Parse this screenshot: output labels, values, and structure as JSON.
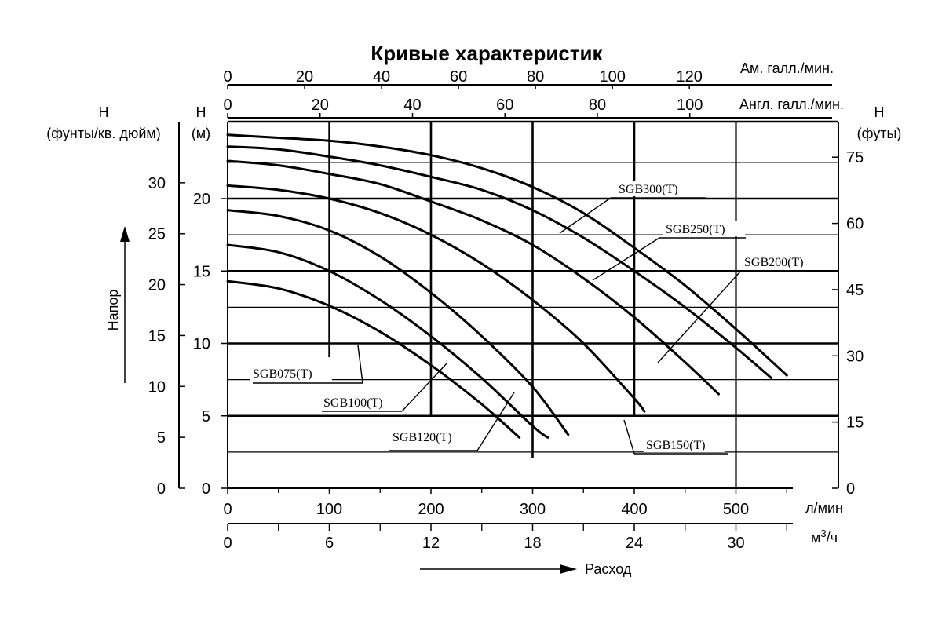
{
  "title": "Кривые характеристик",
  "axes": {
    "top_us_unit": "Ам. галл./мин.",
    "top_uk_unit": "Англ. галл./мин.",
    "bottom_lpm_unit": "л/мин",
    "bottom_m3h_unit": "м³/ч",
    "bottom_m3h_unit_base": "м",
    "bottom_m3h_unit_exp": "3",
    "bottom_m3h_unit_tail": "/ч",
    "left_psi_title": "H",
    "left_psi_unit": "(фунты/кв. дюйм)",
    "left_m_title": "H",
    "left_m_unit": "(м)",
    "right_ft_title": "H",
    "right_ft_unit": "(футы)",
    "ylabel": "Напор",
    "xlabel": "Расход",
    "top_us_ticks": [
      "0",
      "20",
      "40",
      "60",
      "80",
      "100",
      "120"
    ],
    "top_uk_ticks": [
      "0",
      "20",
      "40",
      "60",
      "80",
      "100"
    ],
    "bottom_lpm_ticks": [
      "0",
      "100",
      "200",
      "300",
      "400",
      "500"
    ],
    "bottom_m3h_ticks": [
      "0",
      "6",
      "12",
      "18",
      "24",
      "30"
    ],
    "left_m_ticks": [
      "0",
      "5",
      "10",
      "15",
      "20"
    ],
    "left_psi_ticks": [
      "0",
      "5",
      "10",
      "15",
      "20",
      "25",
      "30"
    ],
    "right_ft_ticks": [
      "0",
      "15",
      "30",
      "45",
      "60",
      "75"
    ]
  },
  "chart_data": {
    "type": "line",
    "title": "Кривые характеристик",
    "xlabel": "Расход",
    "ylabel": "Напор",
    "x_unit": "л/мин",
    "y_unit": "м",
    "xlim": [
      0,
      560
    ],
    "ylim": [
      0,
      25
    ],
    "grid": true,
    "series": [
      {
        "name": "SGB075(T)",
        "x": [
          0,
          50,
          100,
          150,
          200,
          250,
          287
        ],
        "y": [
          14.3,
          13.8,
          12.6,
          10.8,
          8.5,
          5.8,
          3.5
        ]
      },
      {
        "name": "SGB100(T)",
        "x": [
          0,
          50,
          100,
          150,
          200,
          250,
          300,
          315
        ],
        "y": [
          16.8,
          16.3,
          15.0,
          13.0,
          10.5,
          7.6,
          4.3,
          3.5
        ]
      },
      {
        "name": "SGB120(T)",
        "x": [
          0,
          50,
          100,
          150,
          200,
          250,
          300,
          335
        ],
        "y": [
          19.2,
          18.8,
          17.8,
          16.0,
          13.5,
          10.5,
          7.0,
          3.7
        ]
      },
      {
        "name": "SGB150(T)",
        "x": [
          0,
          50,
          100,
          150,
          200,
          250,
          300,
          350,
          400,
          410
        ],
        "y": [
          20.9,
          20.6,
          20.0,
          19.0,
          17.5,
          15.5,
          13.0,
          10.0,
          6.2,
          5.3
        ]
      },
      {
        "name": "SGB200(T)",
        "x": [
          0,
          50,
          100,
          150,
          200,
          250,
          300,
          350,
          400,
          450,
          483
        ],
        "y": [
          22.6,
          22.3,
          21.7,
          21.0,
          19.8,
          18.5,
          16.8,
          14.5,
          11.8,
          8.7,
          6.5
        ]
      },
      {
        "name": "SGB250(T)",
        "x": [
          0,
          50,
          100,
          150,
          200,
          250,
          300,
          350,
          400,
          450,
          500,
          535
        ],
        "y": [
          23.6,
          23.4,
          22.9,
          22.3,
          21.5,
          20.6,
          19.2,
          17.3,
          15.0,
          12.5,
          9.7,
          7.6
        ]
      },
      {
        "name": "SGB300(T)",
        "x": [
          0,
          50,
          100,
          150,
          200,
          250,
          300,
          350,
          400,
          450,
          500,
          550
        ],
        "y": [
          24.4,
          24.2,
          24.0,
          23.6,
          23.0,
          22.1,
          20.8,
          19.0,
          16.6,
          14.0,
          11.0,
          7.8
        ]
      }
    ]
  }
}
